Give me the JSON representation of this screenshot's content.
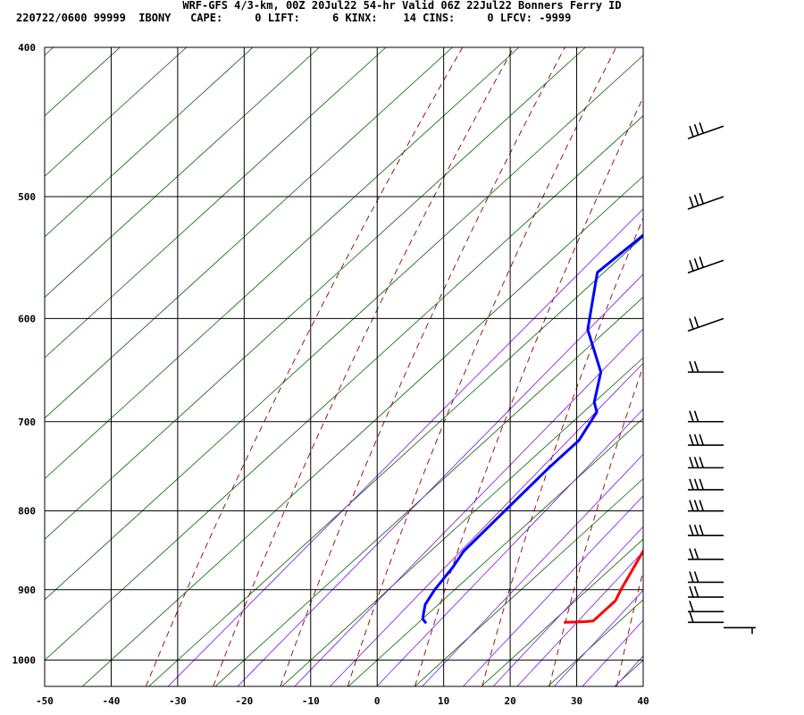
{
  "header": {
    "title": "WRF-GFS 4/3-km, 00Z 20Jul22 54-hr Valid 06Z 22Jul22 Bonners Ferry ID",
    "meta": "220722/0600 99999  IBONY   CAPE:     0 LIFT:     6 KINX:    14 CINS:     0 LFCV: -9999"
  },
  "colors": {
    "temperature": "#ff0000",
    "dewpoint": "#0000ff",
    "dry_adiabat": "#8b0000",
    "isotherm": "#006400",
    "mixing_ratio": "#8a2be2",
    "grid": "#000000"
  },
  "chart_data": {
    "type": "line",
    "title": "",
    "xlabel": "",
    "ylabel": "",
    "x_ticks": [
      -50,
      -40,
      -30,
      -20,
      -10,
      0,
      10,
      20,
      30,
      40
    ],
    "y_ticks": [
      400,
      500,
      600,
      700,
      800,
      900,
      1000
    ],
    "xlim": [
      -50,
      40
    ],
    "ylim": [
      1040,
      400
    ],
    "y_scale": "log-pressure (inverted)",
    "grid": true,
    "series": [
      {
        "role": "temperature",
        "points": [
          {
            "p": 945,
            "x": 22
          },
          {
            "p": 944,
            "x": 25
          },
          {
            "p": 943,
            "x": 26
          },
          {
            "p": 930,
            "x": 26
          },
          {
            "p": 915,
            "x": 26
          },
          {
            "p": 900,
            "x": 25
          },
          {
            "p": 850,
            "x": 22
          },
          {
            "p": 820,
            "x": 20
          },
          {
            "p": 800,
            "x": 17
          },
          {
            "p": 750,
            "x": 12
          },
          {
            "p": 700,
            "x": 6
          },
          {
            "p": 650,
            "x": 2
          },
          {
            "p": 600,
            "x": -2
          },
          {
            "p": 550,
            "x": -7
          },
          {
            "p": 500,
            "x": -11
          },
          {
            "p": 450,
            "x": -17
          }
        ]
      },
      {
        "role": "dewpoint",
        "points": [
          {
            "p": 945,
            "x": 1
          },
          {
            "p": 940,
            "x": 0
          },
          {
            "p": 930,
            "x": -1
          },
          {
            "p": 920,
            "x": -2
          },
          {
            "p": 900,
            "x": -3
          },
          {
            "p": 870,
            "x": -4
          },
          {
            "p": 850,
            "x": -5
          },
          {
            "p": 800,
            "x": -5.5
          },
          {
            "p": 750,
            "x": -6
          },
          {
            "p": 720,
            "x": -6
          },
          {
            "p": 690,
            "x": -8
          },
          {
            "p": 680,
            "x": -10
          },
          {
            "p": 650,
            "x": -14
          },
          {
            "p": 610,
            "x": -23
          },
          {
            "p": 560,
            "x": -31
          },
          {
            "p": 500,
            "x": -29.5
          },
          {
            "p": 450,
            "x": -29
          }
        ]
      }
    ],
    "wind_barbs": [
      {
        "p": 450,
        "barbs": 3
      },
      {
        "p": 500,
        "barbs": 3
      },
      {
        "p": 550,
        "barbs": 3
      },
      {
        "p": 600,
        "barbs": 2
      },
      {
        "p": 650,
        "barbs": 2
      },
      {
        "p": 700,
        "barbs": 2
      },
      {
        "p": 725,
        "barbs": 3
      },
      {
        "p": 750,
        "barbs": 3
      },
      {
        "p": 775,
        "barbs": 3
      },
      {
        "p": 800,
        "barbs": 3
      },
      {
        "p": 830,
        "barbs": 3
      },
      {
        "p": 860,
        "barbs": 2
      },
      {
        "p": 890,
        "barbs": 2
      },
      {
        "p": 910,
        "barbs": 2
      },
      {
        "p": 930,
        "barbs": 1
      },
      {
        "p": 945,
        "barbs": 1
      }
    ]
  }
}
